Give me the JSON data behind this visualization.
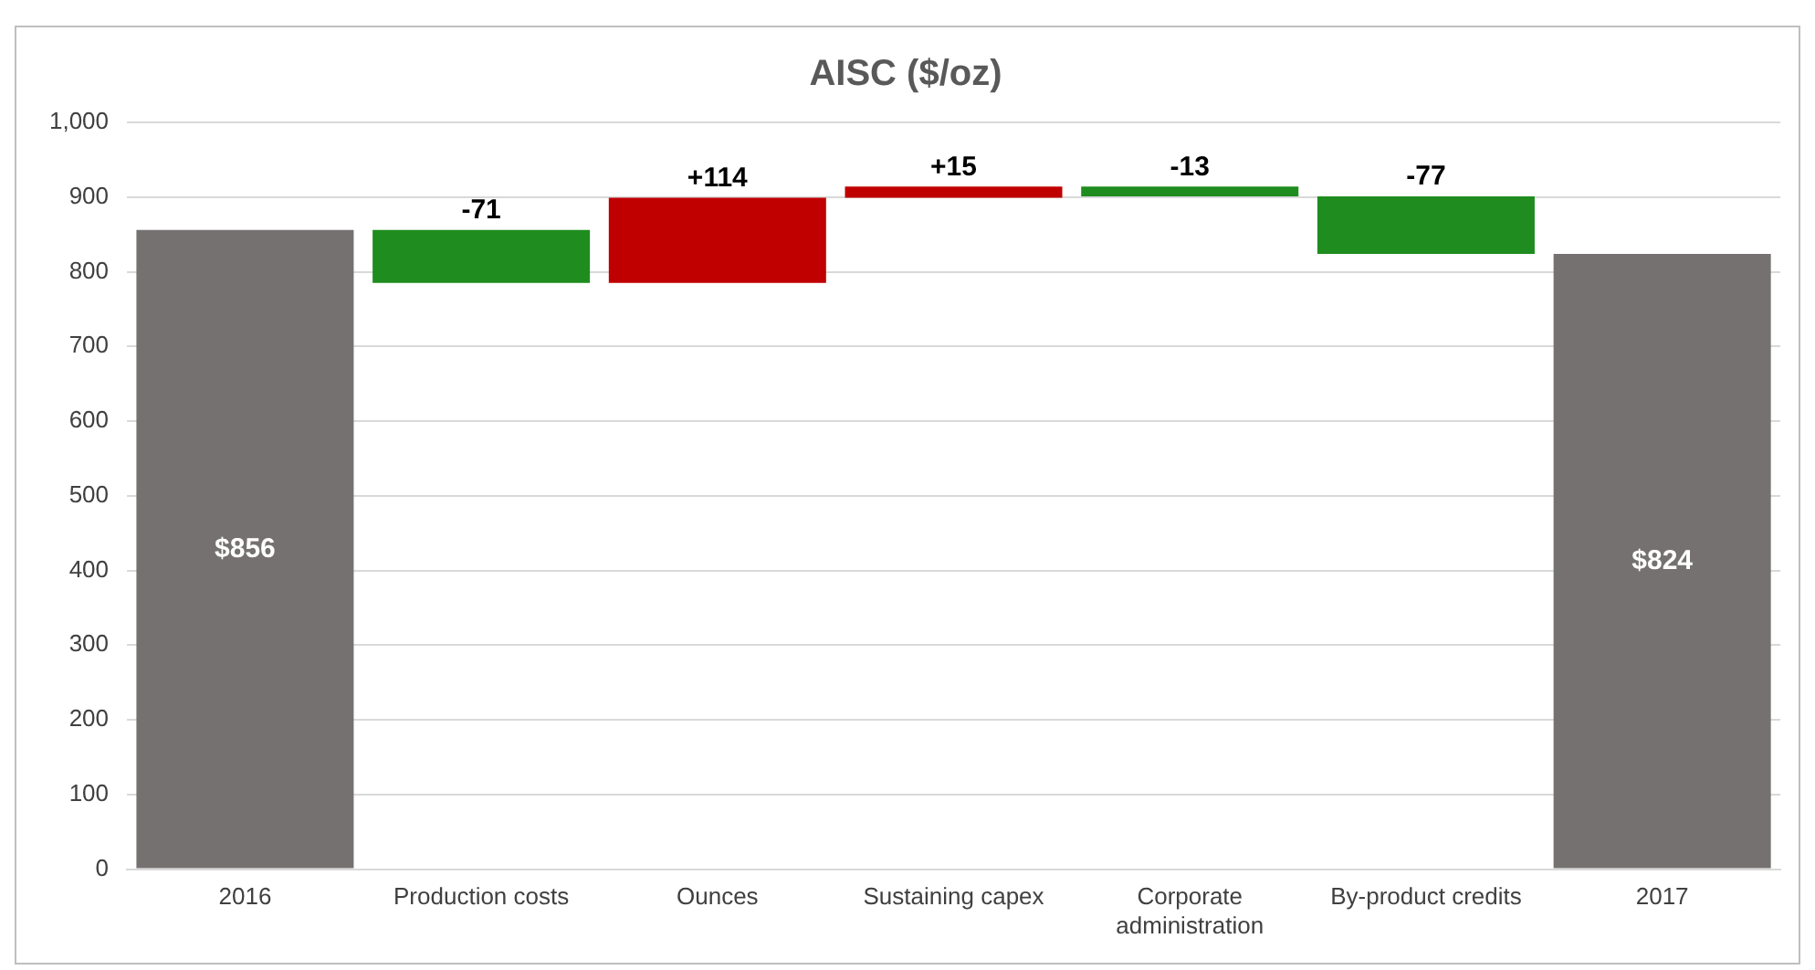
{
  "chart_data": {
    "type": "bar",
    "title": "AISC ($/oz)",
    "categories": [
      "2016",
      "Production costs",
      "Ounces",
      "Sustaining capex",
      "Corporate administration",
      "By-product credits",
      "2017"
    ],
    "values": [
      856,
      -71,
      114,
      15,
      -13,
      -77,
      824
    ],
    "base": [
      0,
      856,
      785,
      899,
      914,
      901,
      0
    ],
    "colors": [
      "#767171",
      "#1e8c1e",
      "#c00000",
      "#c00000",
      "#1e8c1e",
      "#1e8c1e",
      "#767171"
    ],
    "value_labels": [
      "$856",
      "-71",
      "+114",
      "+15",
      "-13",
      "-77",
      "$824"
    ],
    "ylim": [
      0,
      1000
    ],
    "yticks": [
      0,
      100,
      200,
      300,
      400,
      500,
      600,
      700,
      800,
      900,
      {
        "value": 1000,
        "label": "1,000"
      }
    ],
    "grid": "y",
    "legend": false
  }
}
